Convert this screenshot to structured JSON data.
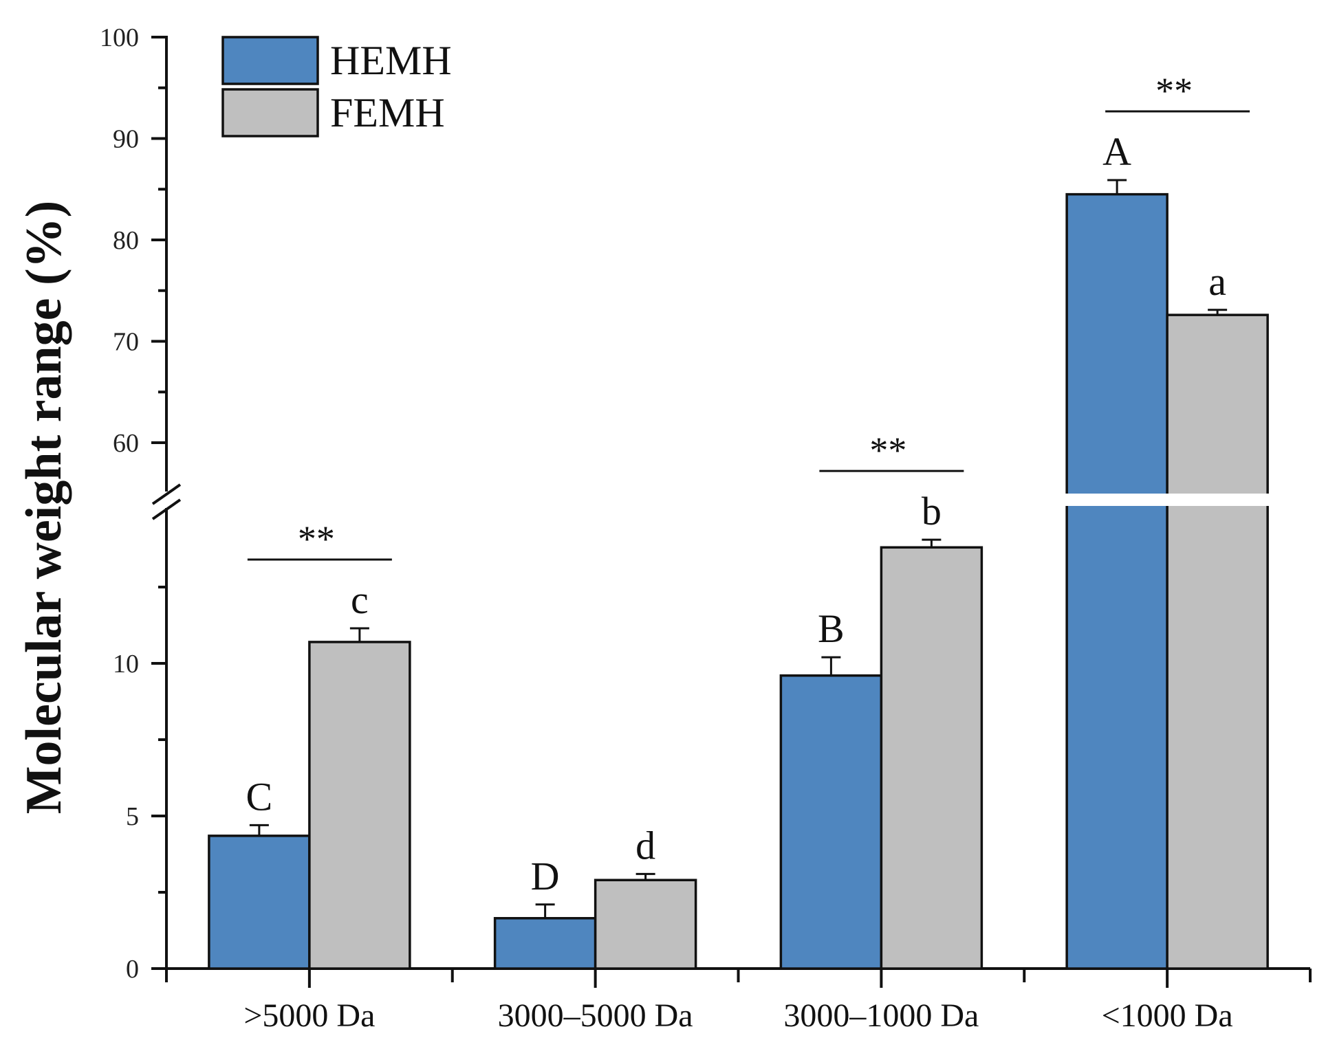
{
  "chart_data": {
    "type": "bar",
    "title": "",
    "xlabel": "",
    "ylabel": "Molecular weight range (%)",
    "categories": [
      ">5000 Da",
      "3000–5000 Da",
      "3000–1000 Da",
      "<1000 Da"
    ],
    "series": [
      {
        "name": "HEMH",
        "color": "#4f86bf",
        "values": [
          4.35,
          1.65,
          9.6,
          84.5
        ],
        "errors": [
          0.35,
          0.45,
          0.6,
          1.4
        ],
        "letters": [
          "C",
          "D",
          "B",
          "A"
        ]
      },
      {
        "name": "FEMH",
        "color": "#bfbfbf",
        "values": [
          10.7,
          2.9,
          13.8,
          72.6
        ],
        "errors": [
          0.45,
          0.2,
          0.25,
          0.5
        ],
        "letters": [
          "c",
          "d",
          "b",
          "a"
        ]
      }
    ],
    "significance": [
      "**",
      "",
      "**",
      "**"
    ],
    "y_axis": {
      "broken": true,
      "lower_segment": {
        "range": [
          0,
          14.5
        ],
        "ticks": [
          0,
          5,
          10
        ],
        "minor_ticks": [
          2.5,
          7.5,
          12.5
        ]
      },
      "upper_segment": {
        "range": [
          55,
          100
        ],
        "ticks": [
          60,
          70,
          80,
          90,
          100
        ],
        "minor_ticks": [
          65,
          75,
          85,
          95
        ]
      }
    },
    "legend": {
      "position": "top-left",
      "entries": [
        "HEMH",
        "FEMH"
      ]
    },
    "grid": false
  }
}
